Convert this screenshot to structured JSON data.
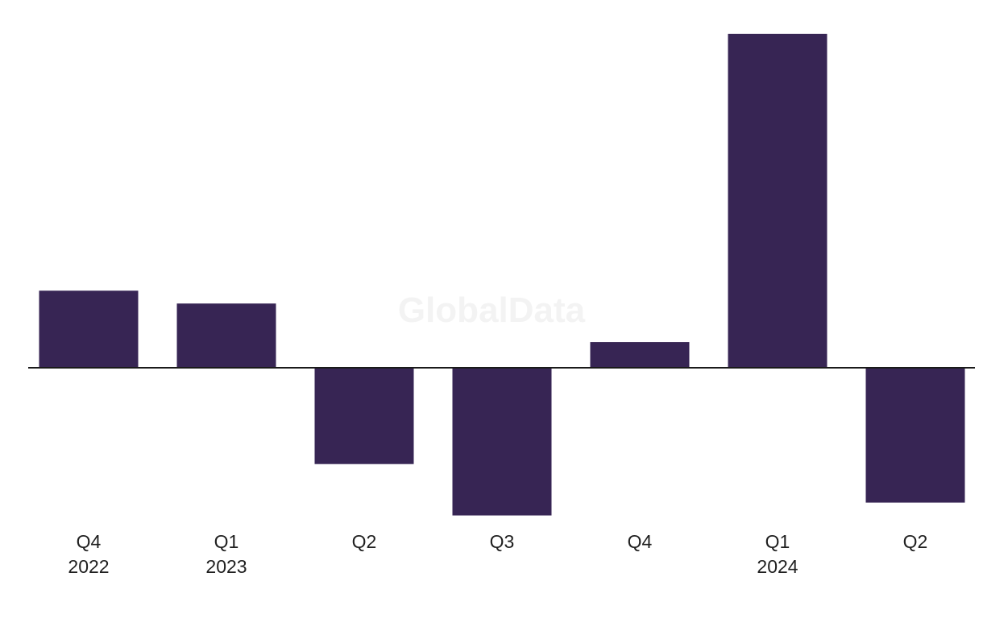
{
  "watermark": "GlobalData",
  "colors": {
    "bar": "#372554",
    "axis": "#1a1a1a",
    "label": "#1f1f1f",
    "watermark": "#f3f3f3",
    "background": "#ffffff"
  },
  "chart_data": {
    "type": "bar",
    "title": "",
    "xlabel": "",
    "ylabel": "",
    "grid": false,
    "legend": "none",
    "categories": [
      [
        "Q4",
        "2022"
      ],
      [
        "Q1",
        "2023"
      ],
      [
        "Q2"
      ],
      [
        "Q3"
      ],
      [
        "Q4"
      ],
      [
        "Q1",
        "2024"
      ],
      [
        "Q2"
      ]
    ],
    "values": [
      6.0,
      5.0,
      -7.5,
      -11.5,
      2.0,
      26.0,
      -10.5
    ],
    "ylim": [
      -12.5,
      26.5
    ]
  }
}
